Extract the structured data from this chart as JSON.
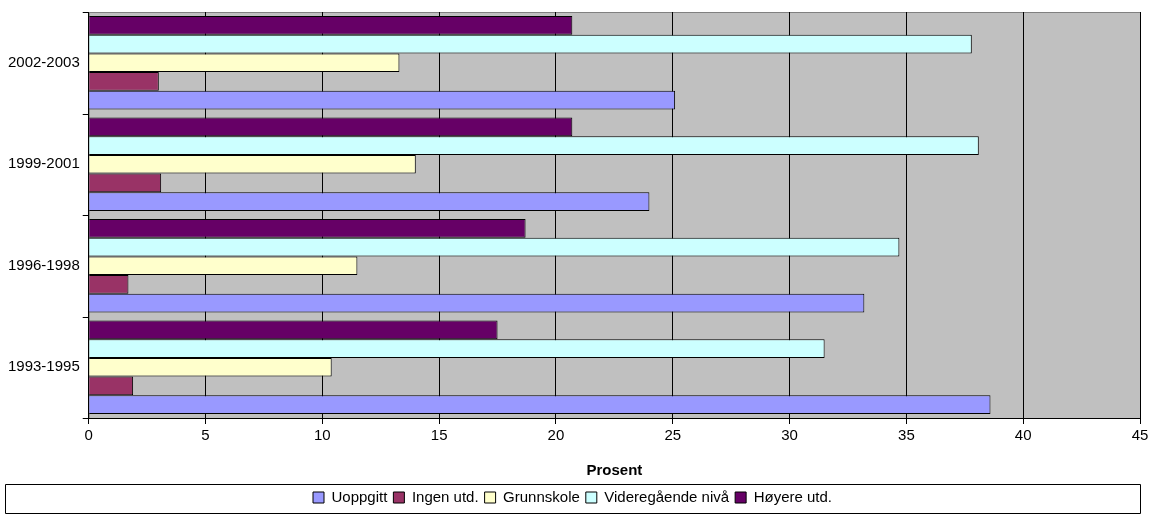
{
  "chart_data": {
    "type": "bar",
    "orientation": "horizontal",
    "xlabel": "Prosent",
    "categories": [
      "2002-2003",
      "1999-2001",
      "1996-1998",
      "1993-1995"
    ],
    "series": [
      {
        "name": "Uoppgitt",
        "color": "#9999ff",
        "values": [
          25.1,
          24.0,
          33.2,
          38.6
        ]
      },
      {
        "name": "Ingen utd.",
        "color": "#993366",
        "values": [
          3.0,
          3.1,
          1.7,
          1.9
        ]
      },
      {
        "name": "Grunnskole",
        "color": "#ffffcc",
        "values": [
          13.3,
          14.0,
          11.5,
          10.4
        ]
      },
      {
        "name": "Videregående nivå",
        "color": "#ccffff",
        "values": [
          37.8,
          38.1,
          34.7,
          31.5
        ]
      },
      {
        "name": "Høyere utd.",
        "color": "#660066",
        "values": [
          20.7,
          20.7,
          18.7,
          17.5
        ]
      }
    ],
    "xlim": [
      0,
      45
    ],
    "xticks": [
      0,
      5,
      10,
      15,
      20,
      25,
      30,
      35,
      40,
      45
    ],
    "grid": "x",
    "legend": "bottom"
  }
}
